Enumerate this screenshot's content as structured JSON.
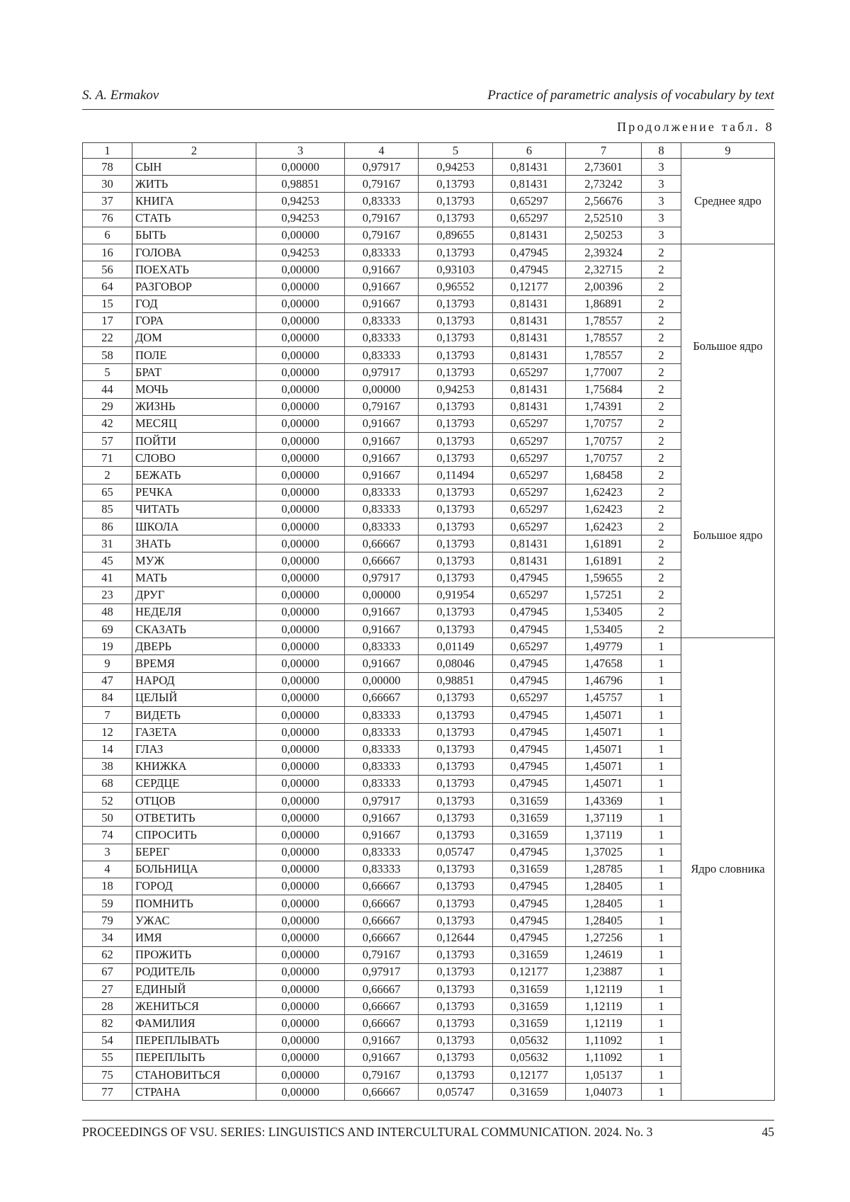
{
  "header": {
    "author": "S. A. Ermakov",
    "title": "Practice of parametric analysis of vocabulary by text"
  },
  "continuation": "Продолжение табл. 8",
  "table": {
    "columns": [
      "1",
      "2",
      "3",
      "4",
      "5",
      "6",
      "7",
      "8",
      "9"
    ],
    "rows": [
      [
        "78",
        "СЫН",
        "0,00000",
        "0,97917",
        "0,94253",
        "0,81431",
        "2,73601",
        "3"
      ],
      [
        "30",
        "ЖИТЬ",
        "0,98851",
        "0,79167",
        "0,13793",
        "0,81431",
        "2,73242",
        "3"
      ],
      [
        "37",
        "КНИГА",
        "0,94253",
        "0,83333",
        "0,13793",
        "0,65297",
        "2,56676",
        "3"
      ],
      [
        "76",
        "СТАТЬ",
        "0,94253",
        "0,79167",
        "0,13793",
        "0,65297",
        "2,52510",
        "3"
      ],
      [
        "6",
        "БЫТЬ",
        "0,00000",
        "0,79167",
        "0,89655",
        "0,81431",
        "2,50253",
        "3"
      ],
      [
        "16",
        "ГОЛОВА",
        "0,94253",
        "0,83333",
        "0,13793",
        "0,47945",
        "2,39324",
        "2"
      ],
      [
        "56",
        "ПОЕХАТЬ",
        "0,00000",
        "0,91667",
        "0,93103",
        "0,47945",
        "2,32715",
        "2"
      ],
      [
        "64",
        "РАЗГОВОР",
        "0,00000",
        "0,91667",
        "0,96552",
        "0,12177",
        "2,00396",
        "2"
      ],
      [
        "15",
        "ГОД",
        "0,00000",
        "0,91667",
        "0,13793",
        "0,81431",
        "1,86891",
        "2"
      ],
      [
        "17",
        "ГОРА",
        "0,00000",
        "0,83333",
        "0,13793",
        "0,81431",
        "1,78557",
        "2"
      ],
      [
        "22",
        "ДОМ",
        "0,00000",
        "0,83333",
        "0,13793",
        "0,81431",
        "1,78557",
        "2"
      ],
      [
        "58",
        "ПОЛЕ",
        "0,00000",
        "0,83333",
        "0,13793",
        "0,81431",
        "1,78557",
        "2"
      ],
      [
        "5",
        "БРАТ",
        "0,00000",
        "0,97917",
        "0,13793",
        "0,65297",
        "1,77007",
        "2"
      ],
      [
        "44",
        "МОЧЬ",
        "0,00000",
        "0,00000",
        "0,94253",
        "0,81431",
        "1,75684",
        "2"
      ],
      [
        "29",
        "ЖИЗНЬ",
        "0,00000",
        "0,79167",
        "0,13793",
        "0,81431",
        "1,74391",
        "2"
      ],
      [
        "42",
        "МЕСЯЦ",
        "0,00000",
        "0,91667",
        "0,13793",
        "0,65297",
        "1,70757",
        "2"
      ],
      [
        "57",
        "ПОЙТИ",
        "0,00000",
        "0,91667",
        "0,13793",
        "0,65297",
        "1,70757",
        "2"
      ],
      [
        "71",
        "СЛОВО",
        "0,00000",
        "0,91667",
        "0,13793",
        "0,65297",
        "1,70757",
        "2"
      ],
      [
        "2",
        "БЕЖАТЬ",
        "0,00000",
        "0,91667",
        "0,11494",
        "0,65297",
        "1,68458",
        "2"
      ],
      [
        "65",
        "РЕЧКА",
        "0,00000",
        "0,83333",
        "0,13793",
        "0,65297",
        "1,62423",
        "2"
      ],
      [
        "85",
        "ЧИТАТЬ",
        "0,00000",
        "0,83333",
        "0,13793",
        "0,65297",
        "1,62423",
        "2"
      ],
      [
        "86",
        "ШКОЛА",
        "0,00000",
        "0,83333",
        "0,13793",
        "0,65297",
        "1,62423",
        "2"
      ],
      [
        "31",
        "ЗНАТЬ",
        "0,00000",
        "0,66667",
        "0,13793",
        "0,81431",
        "1,61891",
        "2"
      ],
      [
        "45",
        "МУЖ",
        "0,00000",
        "0,66667",
        "0,13793",
        "0,81431",
        "1,61891",
        "2"
      ],
      [
        "41",
        "МАТЬ",
        "0,00000",
        "0,97917",
        "0,13793",
        "0,47945",
        "1,59655",
        "2"
      ],
      [
        "23",
        "ДРУГ",
        "0,00000",
        "0,00000",
        "0,91954",
        "0,65297",
        "1,57251",
        "2"
      ],
      [
        "48",
        "НЕДЕЛЯ",
        "0,00000",
        "0,91667",
        "0,13793",
        "0,47945",
        "1,53405",
        "2"
      ],
      [
        "69",
        "СКАЗАТЬ",
        "0,00000",
        "0,91667",
        "0,13793",
        "0,47945",
        "1,53405",
        "2"
      ],
      [
        "19",
        "ДВЕРЬ",
        "0,00000",
        "0,83333",
        "0,01149",
        "0,65297",
        "1,49779",
        "1"
      ],
      [
        "9",
        "ВРЕМЯ",
        "0,00000",
        "0,91667",
        "0,08046",
        "0,47945",
        "1,47658",
        "1"
      ],
      [
        "47",
        "НАРОД",
        "0,00000",
        "0,00000",
        "0,98851",
        "0,47945",
        "1,46796",
        "1"
      ],
      [
        "84",
        "ЦЕЛЫЙ",
        "0,00000",
        "0,66667",
        "0,13793",
        "0,65297",
        "1,45757",
        "1"
      ],
      [
        "7",
        "ВИДЕТЬ",
        "0,00000",
        "0,83333",
        "0,13793",
        "0,47945",
        "1,45071",
        "1"
      ],
      [
        "12",
        "ГАЗЕТА",
        "0,00000",
        "0,83333",
        "0,13793",
        "0,47945",
        "1,45071",
        "1"
      ],
      [
        "14",
        "ГЛАЗ",
        "0,00000",
        "0,83333",
        "0,13793",
        "0,47945",
        "1,45071",
        "1"
      ],
      [
        "38",
        "КНИЖКА",
        "0,00000",
        "0,83333",
        "0,13793",
        "0,47945",
        "1,45071",
        "1"
      ],
      [
        "68",
        "СЕРДЦЕ",
        "0,00000",
        "0,83333",
        "0,13793",
        "0,47945",
        "1,45071",
        "1"
      ],
      [
        "52",
        "ОТЦОВ",
        "0,00000",
        "0,97917",
        "0,13793",
        "0,31659",
        "1,43369",
        "1"
      ],
      [
        "50",
        "ОТВЕТИТЬ",
        "0,00000",
        "0,91667",
        "0,13793",
        "0,31659",
        "1,37119",
        "1"
      ],
      [
        "74",
        "СПРОСИТЬ",
        "0,00000",
        "0,91667",
        "0,13793",
        "0,31659",
        "1,37119",
        "1"
      ],
      [
        "3",
        "БЕРЕГ",
        "0,00000",
        "0,83333",
        "0,05747",
        "0,47945",
        "1,37025",
        "1"
      ],
      [
        "4",
        "БОЛЬНИЦА",
        "0,00000",
        "0,83333",
        "0,13793",
        "0,31659",
        "1,28785",
        "1"
      ],
      [
        "18",
        "ГОРОД",
        "0,00000",
        "0,66667",
        "0,13793",
        "0,47945",
        "1,28405",
        "1"
      ],
      [
        "59",
        "ПОМНИТЬ",
        "0,00000",
        "0,66667",
        "0,13793",
        "0,47945",
        "1,28405",
        "1"
      ],
      [
        "79",
        "УЖАС",
        "0,00000",
        "0,66667",
        "0,13793",
        "0,47945",
        "1,28405",
        "1"
      ],
      [
        "34",
        "ИМЯ",
        "0,00000",
        "0,66667",
        "0,12644",
        "0,47945",
        "1,27256",
        "1"
      ],
      [
        "62",
        "ПРОЖИТЬ",
        "0,00000",
        "0,79167",
        "0,13793",
        "0,31659",
        "1,24619",
        "1"
      ],
      [
        "67",
        "РОДИТЕЛЬ",
        "0,00000",
        "0,97917",
        "0,13793",
        "0,12177",
        "1,23887",
        "1"
      ],
      [
        "27",
        "ЕДИНЫЙ",
        "0,00000",
        "0,66667",
        "0,13793",
        "0,31659",
        "1,12119",
        "1"
      ],
      [
        "28",
        "ЖЕНИТЬСЯ",
        "0,00000",
        "0,66667",
        "0,13793",
        "0,31659",
        "1,12119",
        "1"
      ],
      [
        "82",
        "ФАМИЛИЯ",
        "0,00000",
        "0,66667",
        "0,13793",
        "0,31659",
        "1,12119",
        "1"
      ],
      [
        "54",
        "ПЕРЕПЛЫВАТЬ",
        "0,00000",
        "0,91667",
        "0,13793",
        "0,05632",
        "1,11092",
        "1"
      ],
      [
        "55",
        "ПЕРЕПЛЫТЬ",
        "0,00000",
        "0,91667",
        "0,13793",
        "0,05632",
        "1,11092",
        "1"
      ],
      [
        "75",
        "СТАНОВИТЬСЯ",
        "0,00000",
        "0,79167",
        "0,13793",
        "0,12177",
        "1,05137",
        "1"
      ],
      [
        "77",
        "СТРАНА",
        "0,00000",
        "0,66667",
        "0,05747",
        "0,31659",
        "1,04073",
        "1"
      ]
    ],
    "groups": [
      {
        "start": 0,
        "span": 5,
        "labels": [
          "Среднее ядро"
        ]
      },
      {
        "start": 5,
        "span": 23,
        "labels": [
          "Большое ядро",
          "Большое ядро"
        ]
      },
      {
        "start": 28,
        "span": 27,
        "labels": [
          "Ядро словника"
        ]
      }
    ]
  },
  "footer": {
    "journal": "PROCEEDINGS OF VSU. SERIES: LINGUISTICS AND INTERCULTURAL COMMUNICATION. 2024. No. 3",
    "page": "45"
  }
}
